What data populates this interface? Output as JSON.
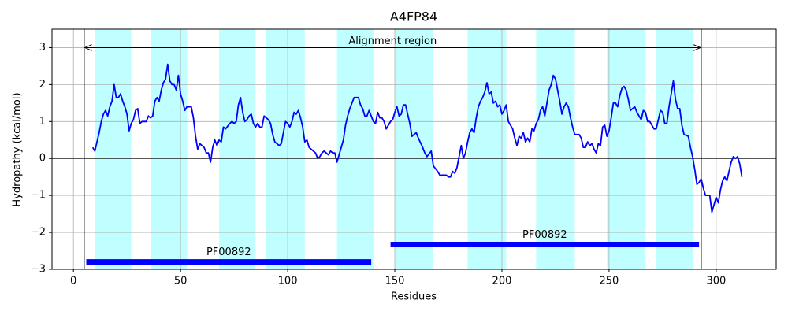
{
  "chart_data": {
    "type": "line",
    "title": "A4FP84",
    "xlabel": "Residues",
    "ylabel": "Hydropathy (kcal/mol)",
    "xlim": [
      -10,
      328
    ],
    "ylim": [
      -3,
      3.5
    ],
    "xticks": [
      0,
      50,
      100,
      150,
      200,
      250,
      300
    ],
    "yticks": [
      {
        "value": -3,
        "label": "−3"
      },
      {
        "value": -2,
        "label": "−2"
      },
      {
        "value": -1,
        "label": "−1"
      },
      0,
      1,
      2,
      3
    ],
    "grid": true,
    "color": "#0000ff",
    "hline": 0,
    "shaded_regions": [
      [
        10,
        27
      ],
      [
        36,
        53
      ],
      [
        68,
        85
      ],
      [
        90,
        108
      ],
      [
        123,
        140
      ],
      [
        150,
        168
      ],
      [
        184,
        202
      ],
      [
        216,
        234
      ],
      [
        249,
        267
      ],
      [
        272,
        289
      ]
    ],
    "vlines": [
      5,
      293
    ],
    "annotation": {
      "text": "Alignment region",
      "x": [
        5,
        293
      ],
      "y": 3
    },
    "domains": [
      {
        "label": "PF00892",
        "start": 6,
        "end": 139,
        "y": -2.8
      },
      {
        "label": "PF00892",
        "start": 148,
        "end": 292,
        "y": -2.33
      }
    ],
    "x": [
      9,
      10,
      12,
      13,
      14,
      15,
      16,
      17,
      18,
      19,
      20,
      21,
      22,
      23,
      24,
      25,
      26,
      27,
      28,
      29,
      30,
      31,
      32,
      33,
      34,
      35,
      36,
      37,
      38,
      39,
      40,
      41,
      42,
      43,
      44,
      45,
      46,
      47,
      48,
      49,
      50,
      51,
      52,
      53,
      55,
      56,
      57,
      58,
      59,
      61,
      62,
      63,
      64,
      65,
      66,
      67,
      68,
      69,
      70,
      71,
      73,
      74,
      75,
      76,
      77,
      78,
      79,
      80,
      81,
      82,
      83,
      84,
      85,
      86,
      87,
      88,
      89,
      91,
      92,
      93,
      94,
      95,
      96,
      97,
      98,
      99,
      100,
      101,
      102,
      103,
      104,
      105,
      106,
      107,
      108,
      109,
      110,
      112,
      113,
      114,
      115,
      116,
      117,
      119,
      120,
      121,
      122,
      123,
      124,
      126,
      127,
      128,
      129,
      130,
      131,
      133,
      134,
      135,
      136,
      137,
      138,
      139,
      140,
      141,
      142,
      143,
      144,
      145,
      146,
      147,
      148,
      149,
      150,
      151,
      152,
      153,
      154,
      155,
      157,
      158,
      160,
      161,
      163,
      164,
      165,
      167,
      168,
      170,
      171,
      174,
      175,
      176,
      177,
      178,
      179,
      181,
      182,
      183,
      184,
      185,
      186,
      187,
      188,
      189,
      190,
      191,
      192,
      193,
      194,
      195,
      196,
      197,
      198,
      199,
      200,
      201,
      202,
      203,
      205,
      206,
      207,
      208,
      209,
      210,
      211,
      212,
      213,
      214,
      215,
      216,
      217,
      218,
      219,
      220,
      221,
      222,
      223,
      224,
      225,
      226,
      227,
      228,
      229,
      230,
      231,
      232,
      233,
      234,
      236,
      237,
      238,
      239,
      240,
      241,
      242,
      243,
      244,
      245,
      246,
      247,
      248,
      249,
      250,
      251,
      252,
      253,
      254,
      255,
      256,
      257,
      258,
      259,
      260,
      261,
      262,
      263,
      265,
      266,
      267,
      268,
      269,
      270,
      271,
      272,
      273,
      274,
      275,
      276,
      277,
      278,
      279,
      280,
      281,
      282,
      283,
      284,
      285,
      287,
      288,
      289,
      290,
      291,
      292,
      293,
      294,
      295,
      297,
      298,
      299,
      300,
      301,
      302,
      303,
      304,
      305,
      306,
      307,
      308,
      309,
      310,
      311,
      312
    ],
    "values": [
      0.3,
      0.2,
      0.7,
      1.0,
      1.2,
      1.3,
      1.15,
      1.4,
      1.55,
      2.0,
      1.65,
      1.65,
      1.75,
      1.55,
      1.4,
      1.2,
      0.75,
      0.95,
      1.05,
      1.3,
      1.35,
      0.95,
      1.0,
      1.0,
      1.0,
      1.15,
      1.1,
      1.15,
      1.55,
      1.65,
      1.55,
      1.85,
      2.05,
      2.15,
      2.55,
      2.1,
      2.0,
      2.0,
      1.85,
      2.25,
      1.75,
      1.55,
      1.3,
      1.4,
      1.4,
      1.1,
      0.6,
      0.25,
      0.4,
      0.3,
      0.15,
      0.15,
      -0.1,
      0.3,
      0.5,
      0.35,
      0.5,
      0.45,
      0.85,
      0.8,
      0.95,
      1.0,
      0.95,
      1.0,
      1.45,
      1.65,
      1.25,
      1.0,
      1.05,
      1.15,
      1.2,
      0.95,
      0.85,
      0.95,
      0.85,
      0.85,
      1.15,
      1.05,
      0.95,
      0.65,
      0.45,
      0.4,
      0.35,
      0.4,
      0.7,
      1.0,
      0.95,
      0.85,
      1.0,
      1.25,
      1.2,
      1.3,
      1.1,
      0.85,
      0.45,
      0.5,
      0.3,
      0.2,
      0.15,
      0.0,
      0.05,
      0.15,
      0.2,
      0.1,
      0.2,
      0.15,
      0.15,
      -0.1,
      0.1,
      0.5,
      0.9,
      1.15,
      1.35,
      1.5,
      1.65,
      1.65,
      1.45,
      1.35,
      1.15,
      1.15,
      1.3,
      1.15,
      1.0,
      0.95,
      1.25,
      1.1,
      1.1,
      1.0,
      0.8,
      0.9,
      1.0,
      1.05,
      1.25,
      1.4,
      1.15,
      1.2,
      1.45,
      1.45,
      0.95,
      0.6,
      0.7,
      0.55,
      0.3,
      0.15,
      0.05,
      0.2,
      -0.2,
      -0.35,
      -0.45,
      -0.45,
      -0.5,
      -0.5,
      -0.35,
      -0.4,
      -0.25,
      0.35,
      0.0,
      0.15,
      0.45,
      0.7,
      0.8,
      0.7,
      1.1,
      1.4,
      1.55,
      1.65,
      1.8,
      2.05,
      1.75,
      1.8,
      1.5,
      1.55,
      1.4,
      1.45,
      1.2,
      1.3,
      1.45,
      1.0,
      0.8,
      0.55,
      0.35,
      0.6,
      0.55,
      0.7,
      0.45,
      0.55,
      0.45,
      0.8,
      0.75,
      0.95,
      1.05,
      1.3,
      1.4,
      1.15,
      1.5,
      1.85,
      2.0,
      2.25,
      2.15,
      1.85,
      1.55,
      1.2,
      1.4,
      1.5,
      1.4,
      1.1,
      0.85,
      0.65,
      0.65,
      0.55,
      0.3,
      0.3,
      0.45,
      0.35,
      0.4,
      0.25,
      0.15,
      0.4,
      0.35,
      0.85,
      0.9,
      0.6,
      0.75,
      1.1,
      1.5,
      1.5,
      1.4,
      1.7,
      1.9,
      1.95,
      1.85,
      1.6,
      1.3,
      1.35,
      1.4,
      1.25,
      1.05,
      1.3,
      1.25,
      1.0,
      1.0,
      0.9,
      0.8,
      0.8,
      1.05,
      1.3,
      1.25,
      0.95,
      0.95,
      1.4,
      1.75,
      2.1,
      1.6,
      1.35,
      1.35,
      0.9,
      0.65,
      0.6,
      0.3,
      0.05,
      -0.3,
      -0.7,
      -0.65,
      -0.55,
      -0.8,
      -1.0,
      -1.0,
      -1.45,
      -1.25,
      -1.05,
      -1.2,
      -0.85,
      -0.6,
      -0.5,
      -0.6,
      -0.35,
      -0.1,
      0.05,
      0.0,
      0.05,
      -0.15,
      -0.5
    ]
  }
}
